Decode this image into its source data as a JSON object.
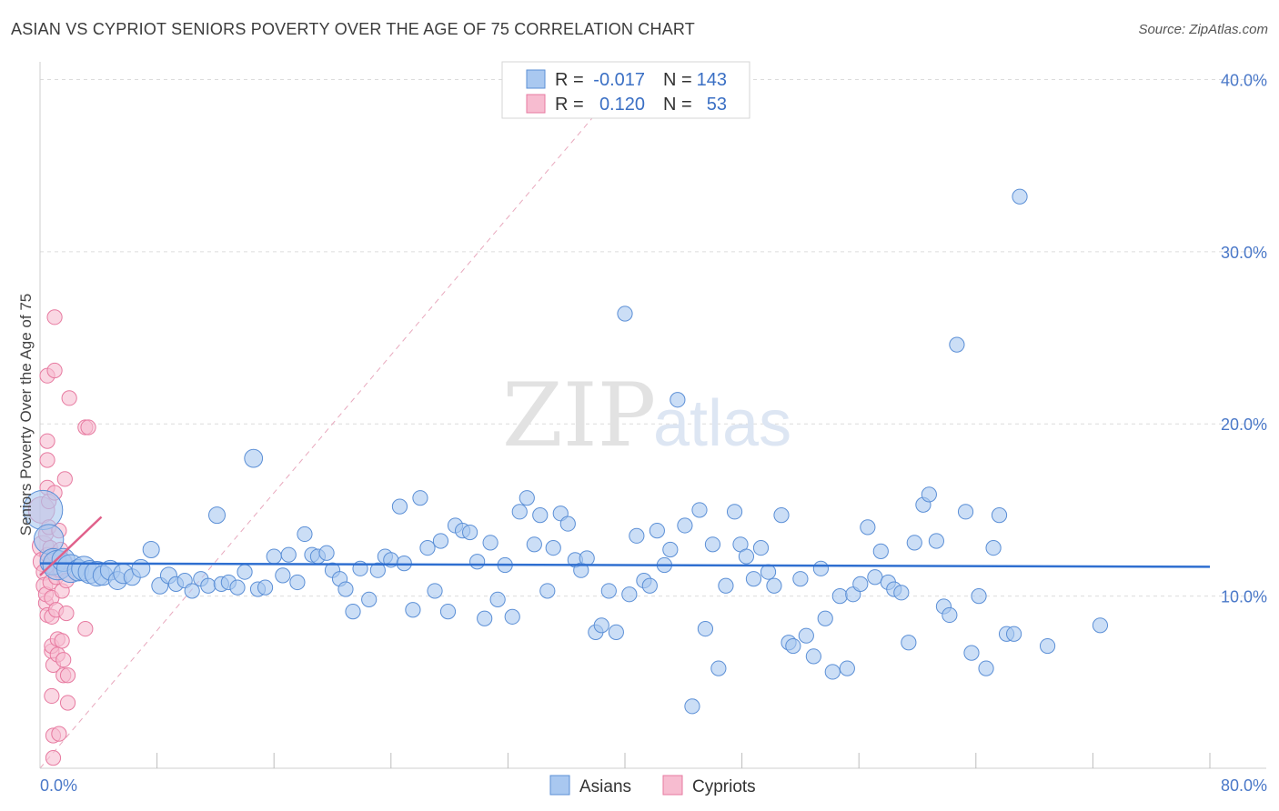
{
  "title": "ASIAN VS CYPRIOT SENIORS POVERTY OVER THE AGE OF 75 CORRELATION CHART",
  "source": "Source: ZipAtlas.com",
  "watermark": {
    "zip": "ZIP",
    "atlas": "atlas"
  },
  "colors": {
    "asian_fill": "#a9c8f0",
    "asian_stroke": "#5b8fd6",
    "asian_line": "#2f6fd0",
    "cypriot_fill": "#f7bcd0",
    "cypriot_stroke": "#e77aa0",
    "cypriot_line": "#e0608a",
    "grid": "#dcdcdc",
    "tick_text": "#4a78c8"
  },
  "legend": {
    "rows": [
      {
        "r_label": "R =",
        "r_value": "-0.017",
        "n_label": "N =",
        "n_value": "143"
      },
      {
        "r_label": "R =",
        "r_value": "0.120",
        "n_label": "N =",
        "n_value": "53"
      }
    ]
  },
  "bottom_legend": [
    "Asians",
    "Cypriots"
  ],
  "chart_data": {
    "type": "scatter",
    "title": "ASIAN VS CYPRIOT SENIORS POVERTY OVER THE AGE OF 75 CORRELATION CHART",
    "xlabel": "",
    "ylabel": "Seniors Poverty Over the Age of 75",
    "xlim": [
      0,
      80
    ],
    "ylim": [
      0,
      40.5
    ],
    "x_tick_labels": [
      "0.0%",
      "80.0%"
    ],
    "y_ticks": [
      10,
      20,
      30,
      40
    ],
    "y_tick_labels": [
      "10.0%",
      "20.0%",
      "30.0%",
      "40.0%"
    ],
    "grid": true,
    "legend_position": "top-center",
    "series": [
      {
        "name": "Asians",
        "r": -0.017,
        "n": 143,
        "trend": {
          "x": [
            0,
            80
          ],
          "y": [
            11.9,
            11.7
          ]
        },
        "points": [
          [
            0.2,
            15.0,
            2.4
          ],
          [
            0.6,
            13.3,
            1.8
          ],
          [
            0.9,
            12.0,
            1.6
          ],
          [
            1.2,
            11.8,
            1.8
          ],
          [
            1.6,
            12.1,
            1.4
          ],
          [
            2.1,
            11.6,
            1.7
          ],
          [
            2.6,
            11.5,
            1.3
          ],
          [
            3.0,
            11.6,
            1.5
          ],
          [
            3.4,
            11.4,
            1.4
          ],
          [
            3.9,
            11.3,
            1.5
          ],
          [
            4.3,
            11.2,
            1.2
          ],
          [
            4.8,
            11.5,
            1.2
          ],
          [
            5.3,
            10.9,
            1.1
          ],
          [
            5.7,
            11.3,
            1.2
          ],
          [
            6.3,
            11.1,
            1.0
          ],
          [
            6.9,
            11.6,
            1.1
          ],
          [
            7.6,
            12.7,
            1.0
          ],
          [
            8.2,
            10.6,
            1.0
          ],
          [
            8.8,
            11.2,
            1.0
          ],
          [
            9.3,
            10.7,
            0.9
          ],
          [
            9.9,
            10.9,
            0.9
          ],
          [
            10.4,
            10.3,
            0.9
          ],
          [
            11.0,
            11.0,
            0.9
          ],
          [
            11.5,
            10.6,
            0.9
          ],
          [
            12.1,
            14.7,
            1.0
          ],
          [
            12.4,
            10.7,
            0.9
          ],
          [
            12.9,
            10.8,
            0.9
          ],
          [
            13.5,
            10.5,
            0.9
          ],
          [
            14.0,
            11.4,
            0.9
          ],
          [
            14.6,
            18.0,
            1.1
          ],
          [
            14.9,
            10.4,
            0.9
          ],
          [
            15.4,
            10.5,
            0.9
          ],
          [
            16.0,
            12.3,
            0.9
          ],
          [
            16.6,
            11.2,
            0.9
          ],
          [
            17.0,
            12.4,
            0.9
          ],
          [
            17.6,
            10.8,
            0.9
          ],
          [
            18.1,
            13.6,
            0.9
          ],
          [
            18.6,
            12.4,
            0.9
          ],
          [
            19.0,
            12.3,
            0.9
          ],
          [
            19.6,
            12.5,
            0.9
          ],
          [
            20.0,
            11.5,
            0.9
          ],
          [
            20.5,
            11.0,
            0.9
          ],
          [
            20.9,
            10.4,
            0.9
          ],
          [
            21.4,
            9.1,
            0.9
          ],
          [
            21.9,
            11.6,
            0.9
          ],
          [
            22.5,
            9.8,
            0.9
          ],
          [
            23.1,
            11.5,
            0.9
          ],
          [
            23.6,
            12.3,
            0.9
          ],
          [
            24.0,
            12.1,
            0.9
          ],
          [
            24.6,
            15.2,
            0.9
          ],
          [
            24.9,
            11.9,
            0.9
          ],
          [
            25.5,
            9.2,
            0.9
          ],
          [
            26.0,
            15.7,
            0.9
          ],
          [
            26.5,
            12.8,
            0.9
          ],
          [
            27.0,
            10.3,
            0.9
          ],
          [
            27.4,
            13.2,
            0.9
          ],
          [
            27.9,
            9.1,
            0.9
          ],
          [
            28.4,
            14.1,
            0.9
          ],
          [
            28.9,
            13.8,
            0.9
          ],
          [
            29.4,
            13.7,
            0.9
          ],
          [
            29.9,
            12.0,
            0.9
          ],
          [
            30.4,
            8.7,
            0.9
          ],
          [
            30.8,
            13.1,
            0.9
          ],
          [
            31.3,
            9.8,
            0.9
          ],
          [
            31.8,
            11.8,
            0.9
          ],
          [
            32.3,
            8.8,
            0.9
          ],
          [
            32.8,
            14.9,
            0.9
          ],
          [
            33.3,
            15.7,
            0.9
          ],
          [
            33.8,
            13.0,
            0.9
          ],
          [
            34.2,
            14.7,
            0.9
          ],
          [
            34.7,
            10.3,
            0.9
          ],
          [
            35.1,
            12.8,
            0.9
          ],
          [
            35.6,
            14.8,
            0.9
          ],
          [
            36.1,
            14.2,
            0.9
          ],
          [
            36.6,
            12.1,
            0.9
          ],
          [
            37.0,
            11.5,
            0.9
          ],
          [
            37.4,
            12.2,
            0.9
          ],
          [
            38.0,
            7.9,
            0.9
          ],
          [
            38.4,
            8.3,
            0.9
          ],
          [
            38.9,
            10.3,
            0.9
          ],
          [
            39.4,
            7.9,
            0.9
          ],
          [
            40.0,
            26.4,
            0.9
          ],
          [
            40.3,
            10.1,
            0.9
          ],
          [
            40.8,
            13.5,
            0.9
          ],
          [
            41.3,
            10.9,
            0.9
          ],
          [
            41.7,
            10.6,
            0.9
          ],
          [
            42.2,
            13.8,
            0.9
          ],
          [
            42.7,
            11.8,
            0.9
          ],
          [
            43.1,
            12.7,
            0.9
          ],
          [
            43.6,
            21.4,
            0.9
          ],
          [
            44.1,
            14.1,
            0.9
          ],
          [
            44.6,
            3.6,
            0.9
          ],
          [
            45.1,
            15.0,
            0.9
          ],
          [
            45.5,
            8.1,
            0.9
          ],
          [
            46.0,
            13.0,
            0.9
          ],
          [
            46.4,
            5.8,
            0.9
          ],
          [
            46.9,
            10.6,
            0.9
          ],
          [
            47.5,
            14.9,
            0.9
          ],
          [
            47.9,
            13.0,
            0.9
          ],
          [
            48.3,
            12.3,
            0.9
          ],
          [
            48.8,
            11.0,
            0.9
          ],
          [
            49.3,
            12.8,
            0.9
          ],
          [
            49.8,
            11.4,
            0.9
          ],
          [
            50.2,
            10.6,
            0.9
          ],
          [
            50.7,
            14.7,
            0.9
          ],
          [
            51.2,
            7.3,
            0.9
          ],
          [
            51.5,
            7.1,
            0.9
          ],
          [
            52.0,
            11.0,
            0.9
          ],
          [
            52.4,
            7.7,
            0.9
          ],
          [
            52.9,
            6.5,
            0.9
          ],
          [
            53.4,
            11.6,
            0.9
          ],
          [
            53.7,
            8.7,
            0.9
          ],
          [
            54.2,
            5.6,
            0.9
          ],
          [
            54.7,
            10.0,
            0.9
          ],
          [
            55.2,
            5.8,
            0.9
          ],
          [
            55.6,
            10.1,
            0.9
          ],
          [
            56.1,
            10.7,
            0.9
          ],
          [
            56.6,
            14.0,
            0.9
          ],
          [
            57.1,
            11.1,
            0.9
          ],
          [
            57.5,
            12.6,
            0.9
          ],
          [
            58.0,
            10.8,
            0.9
          ],
          [
            58.4,
            10.4,
            0.9
          ],
          [
            58.9,
            10.2,
            0.9
          ],
          [
            59.4,
            7.3,
            0.9
          ],
          [
            59.8,
            13.1,
            0.9
          ],
          [
            60.4,
            15.3,
            0.9
          ],
          [
            60.8,
            15.9,
            0.9
          ],
          [
            61.3,
            13.2,
            0.9
          ],
          [
            61.8,
            9.4,
            0.9
          ],
          [
            62.2,
            8.9,
            0.9
          ],
          [
            62.7,
            24.6,
            0.9
          ],
          [
            63.3,
            14.9,
            0.9
          ],
          [
            63.7,
            6.7,
            0.9
          ],
          [
            64.2,
            10.0,
            0.9
          ],
          [
            64.7,
            5.8,
            0.9
          ],
          [
            65.2,
            12.8,
            0.9
          ],
          [
            65.6,
            14.7,
            0.9
          ],
          [
            66.1,
            7.8,
            0.9
          ],
          [
            66.6,
            7.8,
            0.9
          ],
          [
            67.0,
            33.2,
            0.9
          ],
          [
            68.9,
            7.1,
            0.9
          ],
          [
            72.5,
            8.3,
            0.9
          ]
        ]
      },
      {
        "name": "Cypriots",
        "r": 0.12,
        "n": 53,
        "trend": {
          "x": [
            0,
            4.2
          ],
          "y": [
            11.2,
            14.6
          ]
        },
        "points": [
          [
            0.1,
            15.0,
            1.6
          ],
          [
            0.2,
            12.9,
            1.3
          ],
          [
            0.2,
            12.0,
            1.2
          ],
          [
            0.3,
            11.4,
            1.0
          ],
          [
            0.3,
            10.6,
            1.0
          ],
          [
            0.4,
            9.6,
            0.9
          ],
          [
            0.4,
            10.1,
            0.9
          ],
          [
            0.5,
            8.9,
            0.9
          ],
          [
            0.4,
            13.6,
            0.9
          ],
          [
            0.5,
            12.4,
            0.9
          ],
          [
            0.5,
            16.3,
            0.9
          ],
          [
            0.5,
            19.0,
            0.9
          ],
          [
            0.5,
            17.9,
            0.9
          ],
          [
            0.5,
            22.8,
            0.9
          ],
          [
            0.6,
            15.5,
            0.9
          ],
          [
            0.6,
            14.0,
            0.9
          ],
          [
            0.7,
            12.8,
            0.9
          ],
          [
            0.7,
            11.8,
            0.9
          ],
          [
            0.7,
            10.8,
            0.9
          ],
          [
            0.8,
            9.9,
            0.9
          ],
          [
            0.8,
            8.8,
            0.9
          ],
          [
            0.8,
            6.8,
            0.9
          ],
          [
            0.8,
            7.1,
            0.9
          ],
          [
            0.8,
            4.2,
            0.9
          ],
          [
            0.9,
            6.0,
            0.9
          ],
          [
            0.9,
            1.9,
            0.9
          ],
          [
            0.9,
            0.6,
            0.9
          ],
          [
            1.0,
            26.2,
            0.9
          ],
          [
            1.0,
            23.1,
            0.9
          ],
          [
            1.0,
            16.0,
            0.9
          ],
          [
            1.0,
            12.4,
            0.9
          ],
          [
            1.1,
            11.1,
            0.9
          ],
          [
            1.1,
            9.2,
            0.9
          ],
          [
            1.2,
            7.5,
            0.9
          ],
          [
            1.2,
            6.6,
            0.9
          ],
          [
            1.3,
            2.0,
            0.9
          ],
          [
            1.3,
            13.8,
            0.9
          ],
          [
            1.4,
            12.7,
            0.9
          ],
          [
            1.4,
            11.5,
            0.9
          ],
          [
            1.5,
            10.3,
            0.9
          ],
          [
            1.5,
            7.4,
            0.9
          ],
          [
            1.6,
            6.3,
            0.9
          ],
          [
            1.6,
            5.4,
            0.9
          ],
          [
            1.7,
            16.8,
            0.9
          ],
          [
            1.7,
            12.0,
            0.9
          ],
          [
            1.8,
            10.9,
            0.9
          ],
          [
            1.8,
            9.0,
            0.9
          ],
          [
            1.9,
            3.8,
            0.9
          ],
          [
            1.9,
            5.4,
            0.9
          ],
          [
            2.0,
            21.5,
            0.9
          ],
          [
            3.1,
            19.8,
            0.9
          ],
          [
            3.3,
            19.8,
            0.9
          ],
          [
            3.1,
            8.1,
            0.9
          ]
        ]
      }
    ]
  }
}
